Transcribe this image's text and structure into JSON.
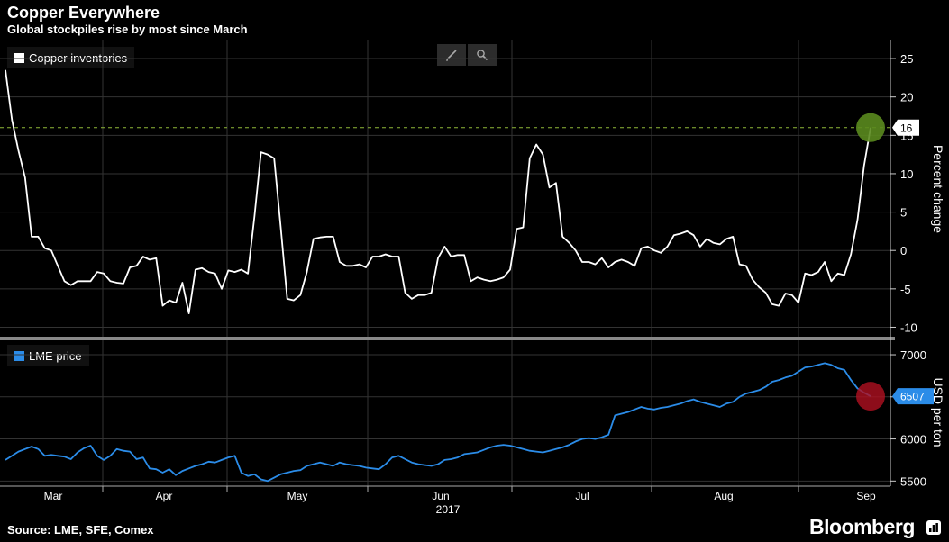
{
  "header": {
    "title": "Copper Everywhere",
    "subtitle": "Global stockpiles rise by most since March"
  },
  "footer": {
    "source": "Source: LME, SFE, Comex",
    "brand": "Bloomberg"
  },
  "toolbar": {
    "draw_icon": "pencil-icon",
    "zoom_icon": "magnifier-icon"
  },
  "chart_data": [
    {
      "type": "line",
      "legend": "Copper inventories",
      "ylabel": "Percent change",
      "ylim": [
        -11,
        27
      ],
      "yticks": [
        -10,
        -5,
        0,
        5,
        10,
        15,
        20,
        25
      ],
      "last_value_label": "16",
      "last_value": 16,
      "color": "#ffffff",
      "highlight_color": "#5a8a1e",
      "series": [
        {
          "name": "Copper inventories",
          "values": [
            23.5,
            17,
            13,
            9.5,
            1.8,
            1.8,
            0.3,
            0,
            -2,
            -4,
            -4.5,
            -4,
            -4,
            -4,
            -2.8,
            -3,
            -4,
            -4.2,
            -4.3,
            -2.2,
            -2,
            -0.8,
            -1.2,
            -1,
            -7.2,
            -6.5,
            -6.8,
            -4.2,
            -8.2,
            -2.5,
            -2.3,
            -2.8,
            -3,
            -5,
            -2.6,
            -2.8,
            -2.5,
            -3,
            4.5,
            12.8,
            12.5,
            12,
            3,
            -6.3,
            -6.5,
            -5.8,
            -2.8,
            1.5,
            1.7,
            1.8,
            1.8,
            -1.5,
            -2,
            -2,
            -1.8,
            -2.2,
            -0.8,
            -0.8,
            -0.5,
            -0.8,
            -0.8,
            -5.5,
            -6.3,
            -5.8,
            -5.8,
            -5.5,
            -1,
            0.5,
            -0.8,
            -0.6,
            -0.6,
            -4,
            -3.5,
            -3.8,
            -4,
            -3.8,
            -3.5,
            -2.5,
            2.8,
            3,
            12,
            13.8,
            12.5,
            8.2,
            8.8,
            1.8,
            1,
            0,
            -1.5,
            -1.5,
            -1.8,
            -1,
            -2.2,
            -1.5,
            -1.2,
            -1.5,
            -2,
            0.3,
            0.5,
            0,
            -0.3,
            0.5,
            2,
            2.2,
            2.5,
            2,
            0.5,
            1.5,
            1,
            0.8,
            1.5,
            1.8,
            -1.8,
            -2,
            -3.8,
            -4.8,
            -5.5,
            -7,
            -7.2,
            -5.6,
            -5.8,
            -6.8,
            -3,
            -3.2,
            -2.8,
            -1.5,
            -4,
            -3,
            -3.2,
            -0.5,
            4,
            11,
            16
          ]
        }
      ]
    },
    {
      "type": "line",
      "legend": "LME price",
      "ylabel": "USD per ton",
      "ylim": [
        5450,
        7150
      ],
      "yticks": [
        5500,
        6000,
        6500,
        7000
      ],
      "last_value_label": "6507",
      "last_value": 6507,
      "color": "#2b8ce8",
      "highlight_color": "#b01020",
      "series": [
        {
          "name": "LME price",
          "values": [
            5750,
            5800,
            5850,
            5880,
            5910,
            5880,
            5800,
            5810,
            5800,
            5790,
            5760,
            5840,
            5890,
            5920,
            5800,
            5750,
            5800,
            5880,
            5860,
            5850,
            5760,
            5780,
            5650,
            5640,
            5600,
            5640,
            5570,
            5620,
            5650,
            5680,
            5700,
            5730,
            5720,
            5750,
            5780,
            5800,
            5600,
            5560,
            5580,
            5520,
            5500,
            5540,
            5580,
            5600,
            5620,
            5630,
            5680,
            5700,
            5720,
            5700,
            5680,
            5720,
            5700,
            5690,
            5680,
            5660,
            5650,
            5640,
            5700,
            5780,
            5800,
            5760,
            5720,
            5700,
            5690,
            5680,
            5700,
            5750,
            5760,
            5780,
            5820,
            5830,
            5840,
            5870,
            5900,
            5920,
            5930,
            5920,
            5900,
            5880,
            5860,
            5850,
            5840,
            5860,
            5880,
            5900,
            5930,
            5970,
            6000,
            6010,
            6000,
            6020,
            6050,
            6280,
            6300,
            6320,
            6350,
            6380,
            6360,
            6350,
            6370,
            6380,
            6400,
            6420,
            6450,
            6470,
            6440,
            6420,
            6400,
            6380,
            6420,
            6440,
            6500,
            6540,
            6560,
            6580,
            6620,
            6680,
            6700,
            6730,
            6750,
            6800,
            6850,
            6860,
            6880,
            6900,
            6880,
            6840,
            6820,
            6700,
            6600,
            6550,
            6507
          ]
        }
      ]
    }
  ],
  "x_axis": {
    "month_labels": [
      "Mar",
      "Apr",
      "May",
      "Jun",
      "Jul",
      "Aug",
      "Sep"
    ],
    "year_label": "2017"
  }
}
